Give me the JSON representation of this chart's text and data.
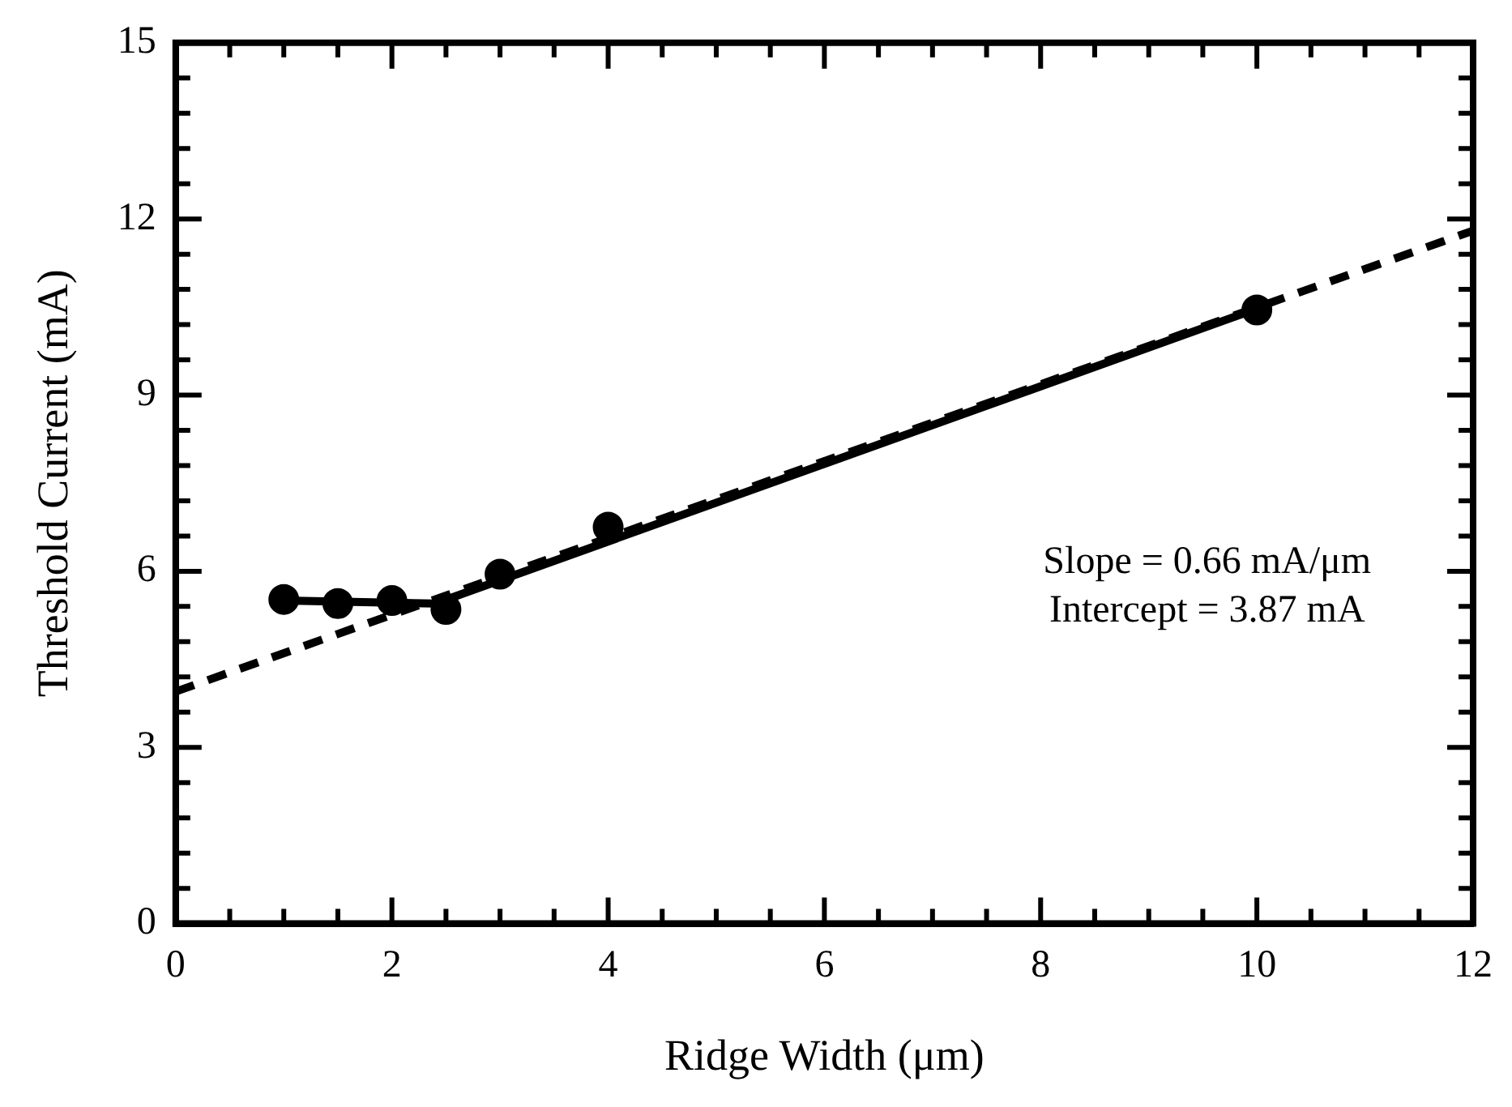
{
  "chart_data": {
    "type": "scatter",
    "xlabel": "Ridge Width (μm)",
    "ylabel": "Threshold Current (mA)",
    "xlim": [
      0,
      12
    ],
    "ylim": [
      0,
      15
    ],
    "xticks": [
      0,
      {
        "value": 0.5,
        "label": null
      },
      {
        "value": 1,
        "label": null
      },
      {
        "value": 1.5,
        "label": null
      },
      2,
      {
        "value": 2.5,
        "label": null
      },
      {
        "value": 3,
        "label": null
      },
      {
        "value": 3.5,
        "label": null
      },
      4,
      {
        "value": 4.5,
        "label": null
      },
      {
        "value": 5,
        "label": null
      },
      {
        "value": 5.5,
        "label": null
      },
      6,
      {
        "value": 6.5,
        "label": null
      },
      {
        "value": 7,
        "label": null
      },
      {
        "value": 7.5,
        "label": null
      },
      8,
      {
        "value": 8.5,
        "label": null
      },
      {
        "value": 9,
        "label": null
      },
      {
        "value": 9.5,
        "label": null
      },
      10,
      {
        "value": 10.5,
        "label": null
      },
      {
        "value": 11,
        "label": null
      },
      {
        "value": 11.5,
        "label": null
      },
      12
    ],
    "yticks": [
      0,
      {
        "value": 0.6,
        "label": null
      },
      {
        "value": 1.2,
        "label": null
      },
      {
        "value": 1.8,
        "label": null
      },
      {
        "value": 2.4,
        "label": null
      },
      3,
      {
        "value": 3.6,
        "label": null
      },
      {
        "value": 4.2,
        "label": null
      },
      {
        "value": 4.8,
        "label": null
      },
      {
        "value": 5.4,
        "label": null
      },
      6,
      {
        "value": 6.6,
        "label": null
      },
      {
        "value": 7.2,
        "label": null
      },
      {
        "value": 7.8,
        "label": null
      },
      {
        "value": 8.4,
        "label": null
      },
      9,
      {
        "value": 9.6,
        "label": null
      },
      {
        "value": 10.2,
        "label": null
      },
      {
        "value": 10.8,
        "label": null
      },
      {
        "value": 11.4,
        "label": null
      },
      12,
      {
        "value": 12.6,
        "label": null
      },
      {
        "value": 13.2,
        "label": null
      },
      {
        "value": 13.8,
        "label": null
      },
      {
        "value": 14.4,
        "label": null
      },
      15
    ],
    "grid": false,
    "legend": false,
    "series": [
      {
        "type": "line",
        "line_style": "dashed",
        "marker": "none",
        "color": "#000000",
        "x": [
          0,
          12
        ],
        "values": [
          3.95,
          11.8
        ]
      },
      {
        "type": "line",
        "line_style": "solid",
        "marker": "none",
        "color": "#000000",
        "x": [
          1,
          2.4,
          10
        ],
        "values": [
          5.5,
          5.45,
          10.47
        ]
      },
      {
        "marker": "circle",
        "color": "#000000",
        "x": [
          1,
          1.5,
          2,
          2.5,
          3,
          4,
          10
        ],
        "values": [
          5.52,
          5.45,
          5.5,
          5.35,
          5.95,
          6.75,
          10.45
        ]
      }
    ],
    "annotations": [
      "Slope = 0.66 mA/μm",
      "Intercept = 3.87 mA"
    ]
  }
}
